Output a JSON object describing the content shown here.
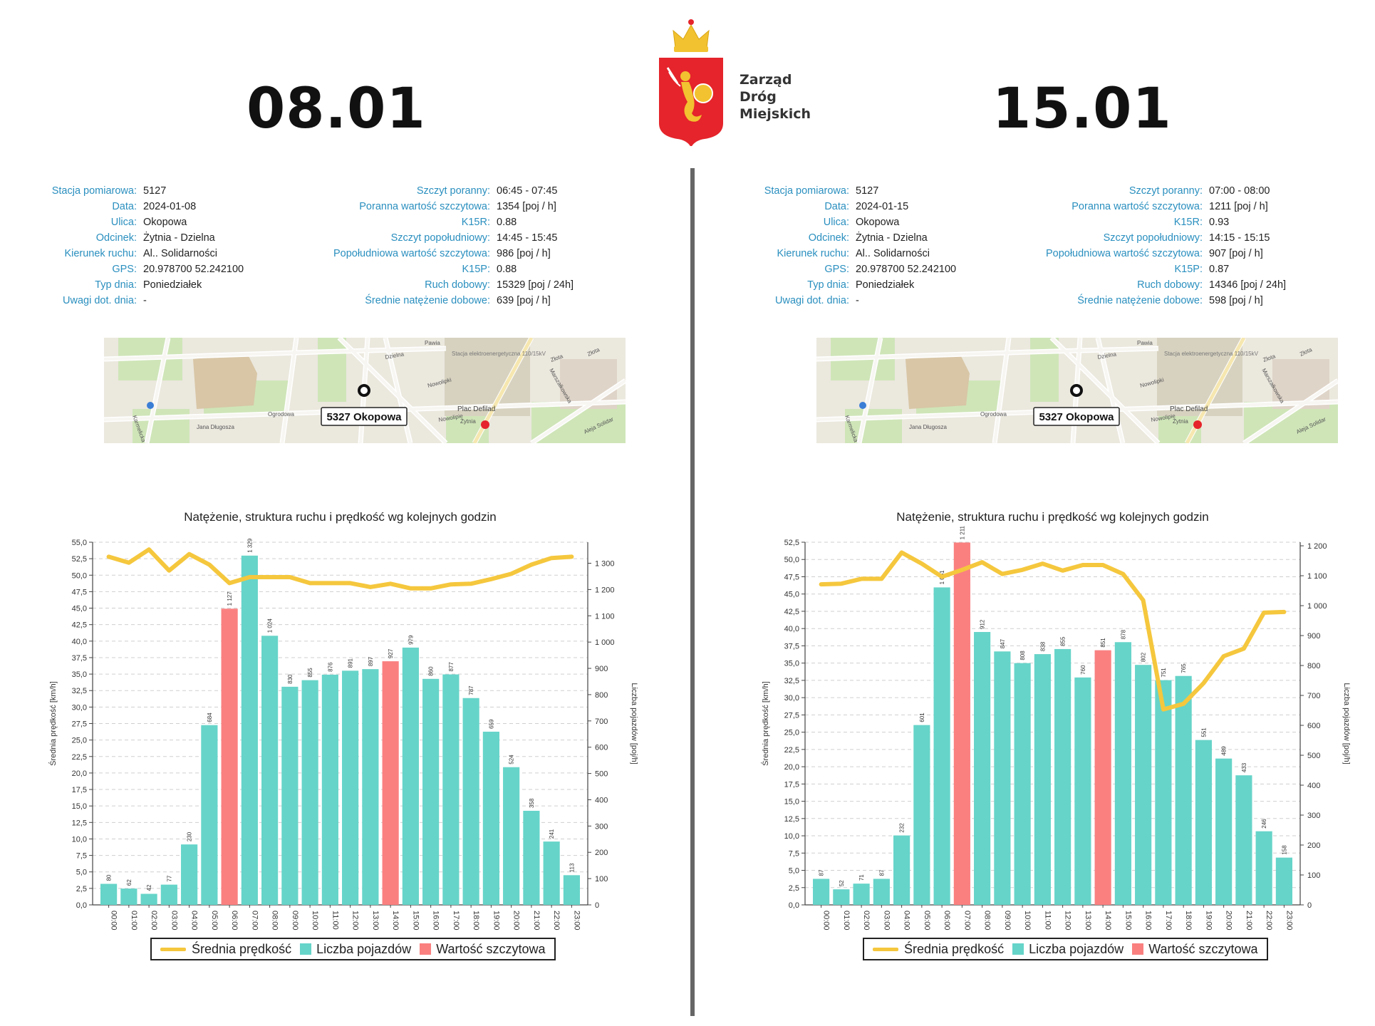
{
  "logo": {
    "line1": "Zarząd",
    "line2": "Dróg",
    "line3": "Miejskich",
    "icon": "warsaw-mermaid-crest-icon"
  },
  "colors": {
    "bar": "#66d4c9",
    "peak": "#fa8080",
    "speed": "#f5c73d",
    "label": "#2a8fbf"
  },
  "legend": {
    "speed": "Średnia prędkość",
    "count": "Liczba pojazdów",
    "peak": "Wartość szczytowa"
  },
  "panels": [
    {
      "date": "08.01",
      "info_left": [
        {
          "label": "Stacja pomiarowa:",
          "value": "5127"
        },
        {
          "label": "Data:",
          "value": "2024-01-08"
        },
        {
          "label": "Ulica:",
          "value": "Okopowa"
        },
        {
          "label": "Odcinek:",
          "value": "Żytnia - Dzielna"
        },
        {
          "label": "Kierunek ruchu:",
          "value": "Al.. Solidarności"
        },
        {
          "label": "GPS:",
          "value": "20.978700 52.242100"
        },
        {
          "label": "Typ dnia:",
          "value": "Poniedziałek"
        },
        {
          "label": "Uwagi dot. dnia:",
          "value": "-"
        }
      ],
      "info_right": [
        {
          "label": "Szczyt poranny:",
          "value": "06:45 - 07:45"
        },
        {
          "label": "Poranna wartość szczytowa:",
          "value": "1354 [poj / h]"
        },
        {
          "label": "K15R:",
          "value": "0.88"
        },
        {
          "label": "Szczyt popołudniowy:",
          "value": "14:45 - 15:45"
        },
        {
          "label": "Popołudniowa wartość szczytowa:",
          "value": "986 [poj / h]"
        },
        {
          "label": "K15P:",
          "value": "0.88"
        },
        {
          "label": "Ruch dobowy:",
          "value": "15329 [poj / 24h]"
        },
        {
          "label": "Średnie natężenie dobowe:",
          "value": "639 [poj / h]"
        }
      ],
      "map": {
        "station_label": "5327 Okopowa",
        "streets": [
          "Pawia",
          "Dzielna",
          "Nowolipki",
          "Złota",
          "Złota",
          "Marszałkowska",
          "Aleja Solidar",
          "Żytnia",
          "Nowolipie",
          "Jana Długosza",
          "Karmelicka",
          "Ogrodowa"
        ],
        "place": "Plac Defilad",
        "building": "Stacja elektroenergetyczna 110/15kV"
      }
    },
    {
      "date": "15.01",
      "info_left": [
        {
          "label": "Stacja pomiarowa:",
          "value": "5127"
        },
        {
          "label": "Data:",
          "value": "2024-01-15"
        },
        {
          "label": "Ulica:",
          "value": "Okopowa"
        },
        {
          "label": "Odcinek:",
          "value": "Żytnia - Dzielna"
        },
        {
          "label": "Kierunek ruchu:",
          "value": "Al.. Solidarności"
        },
        {
          "label": "GPS:",
          "value": "20.978700 52.242100"
        },
        {
          "label": "Typ dnia:",
          "value": "Poniedziałek"
        },
        {
          "label": "Uwagi dot. dnia:",
          "value": "-"
        }
      ],
      "info_right": [
        {
          "label": "Szczyt poranny:",
          "value": "07:00 - 08:00"
        },
        {
          "label": "Poranna wartość szczytowa:",
          "value": "1211 [poj / h]"
        },
        {
          "label": "K15R:",
          "value": "0.93"
        },
        {
          "label": "Szczyt popołudniowy:",
          "value": "14:15 - 15:15"
        },
        {
          "label": "Popołudniowa wartość szczytowa:",
          "value": "907 [poj / h]"
        },
        {
          "label": "K15P:",
          "value": "0.87"
        },
        {
          "label": "Ruch dobowy:",
          "value": "14346 [poj / 24h]"
        },
        {
          "label": "Średnie natężenie dobowe:",
          "value": "598 [poj / h]"
        }
      ],
      "map": {
        "station_label": "5327 Okopowa",
        "streets": [
          "Pawia",
          "Dzielna",
          "Nowolipki",
          "Złota",
          "Złota",
          "Marszałkowska",
          "Aleja Solidar",
          "Żytnia",
          "Nowolipie",
          "Jana Długosza",
          "Karmelicka",
          "Ogrodowa"
        ],
        "place": "Plac Defilad",
        "building": "Stacja elektroenergetyczna 110/15kV"
      }
    }
  ],
  "chart_data": [
    {
      "type": "bar",
      "title": "Natężenie, struktura ruchu i prędkość wg kolejnych godzin",
      "ylabel": "Średnia prędkość [km/h]",
      "y2label": "Liczba pojazdów [poj/h]",
      "ylim": [
        0,
        55
      ],
      "ytick_step": 2.5,
      "y2lim": [
        0,
        1380
      ],
      "y2ticks": [
        0,
        100,
        200,
        300,
        400,
        500,
        600,
        700,
        800,
        900,
        1000,
        1100,
        1200,
        1300
      ],
      "y2tick_labels": [
        "0",
        "100",
        "200",
        "300",
        "400",
        "500",
        "600",
        "700",
        "800",
        "900",
        "1 000",
        "1 100",
        "1 200",
        "1 300"
      ],
      "categories": [
        "00:00",
        "01:00",
        "02:00",
        "03:00",
        "04:00",
        "05:00",
        "06:00",
        "07:00",
        "08:00",
        "09:00",
        "10:00",
        "11:00",
        "12:00",
        "13:00",
        "14:00",
        "15:00",
        "16:00",
        "17:00",
        "18:00",
        "19:00",
        "20:00",
        "21:00",
        "22:00",
        "23:00"
      ],
      "values": [
        80,
        62,
        42,
        77,
        230,
        684,
        1127,
        1329,
        1024,
        830,
        855,
        876,
        891,
        897,
        927,
        979,
        860,
        877,
        787,
        659,
        524,
        358,
        241,
        113
      ],
      "value_labels": [
        "80",
        "62",
        "42",
        "77",
        "230",
        "684",
        "1 127",
        "1 329",
        "1 024",
        "830",
        "855",
        "876",
        "891",
        "897",
        "927",
        "979",
        "860",
        "877",
        "787",
        "659",
        "524",
        "358",
        "241",
        "113"
      ],
      "peak_indices": [
        6,
        14
      ],
      "speed": [
        52.8,
        51.9,
        53.9,
        50.7,
        53.2,
        51.6,
        48.8,
        49.7,
        49.7,
        49.7,
        48.8,
        48.8,
        48.8,
        48.2,
        48.7,
        48.0,
        48.0,
        48.6,
        48.7,
        49.4,
        50.2,
        51.6,
        52.6,
        52.8
      ]
    },
    {
      "type": "bar",
      "title": "Natężenie, struktura ruchu i prędkość wg kolejnych godzin",
      "ylabel": "Średnia prędkość [km/h]",
      "y2label": "Liczba pojazdów [poj/h]",
      "ylim": [
        0,
        52.5
      ],
      "ytick_step": 2.5,
      "y2lim": [
        0,
        1212
      ],
      "y2ticks": [
        0,
        100,
        200,
        300,
        400,
        500,
        600,
        700,
        800,
        900,
        1000,
        1100,
        1200
      ],
      "y2tick_labels": [
        "0",
        "100",
        "200",
        "300",
        "400",
        "500",
        "600",
        "700",
        "800",
        "900",
        "1 000",
        "1 100",
        "1 200"
      ],
      "categories": [
        "00:00",
        "01:00",
        "02:00",
        "03:00",
        "04:00",
        "05:00",
        "06:00",
        "07:00",
        "08:00",
        "09:00",
        "10:00",
        "11:00",
        "12:00",
        "13:00",
        "14:00",
        "15:00",
        "16:00",
        "17:00",
        "18:00",
        "19:00",
        "20:00",
        "21:00",
        "22:00",
        "23:00"
      ],
      "values": [
        87,
        52,
        71,
        87,
        232,
        601,
        1061,
        1211,
        912,
        847,
        808,
        838,
        855,
        760,
        851,
        878,
        802,
        751,
        765,
        551,
        489,
        433,
        246,
        158
      ],
      "value_labels": [
        "87",
        "52",
        "71",
        "87",
        "232",
        "601",
        "1 061",
        "1 211",
        "912",
        "847",
        "808",
        "838",
        "855",
        "760",
        "851",
        "878",
        "802",
        "751",
        "765",
        "551",
        "489",
        "433",
        "246",
        "158"
      ],
      "peak_indices": [
        7,
        14
      ],
      "speed": [
        46.4,
        46.5,
        47.2,
        47.2,
        51.0,
        49.4,
        47.5,
        48.5,
        49.6,
        47.9,
        48.5,
        49.4,
        48.4,
        49.2,
        49.2,
        47.9,
        44.1,
        28.3,
        29.1,
        32.1,
        36.0,
        37.1,
        42.3,
        42.4
      ]
    }
  ]
}
